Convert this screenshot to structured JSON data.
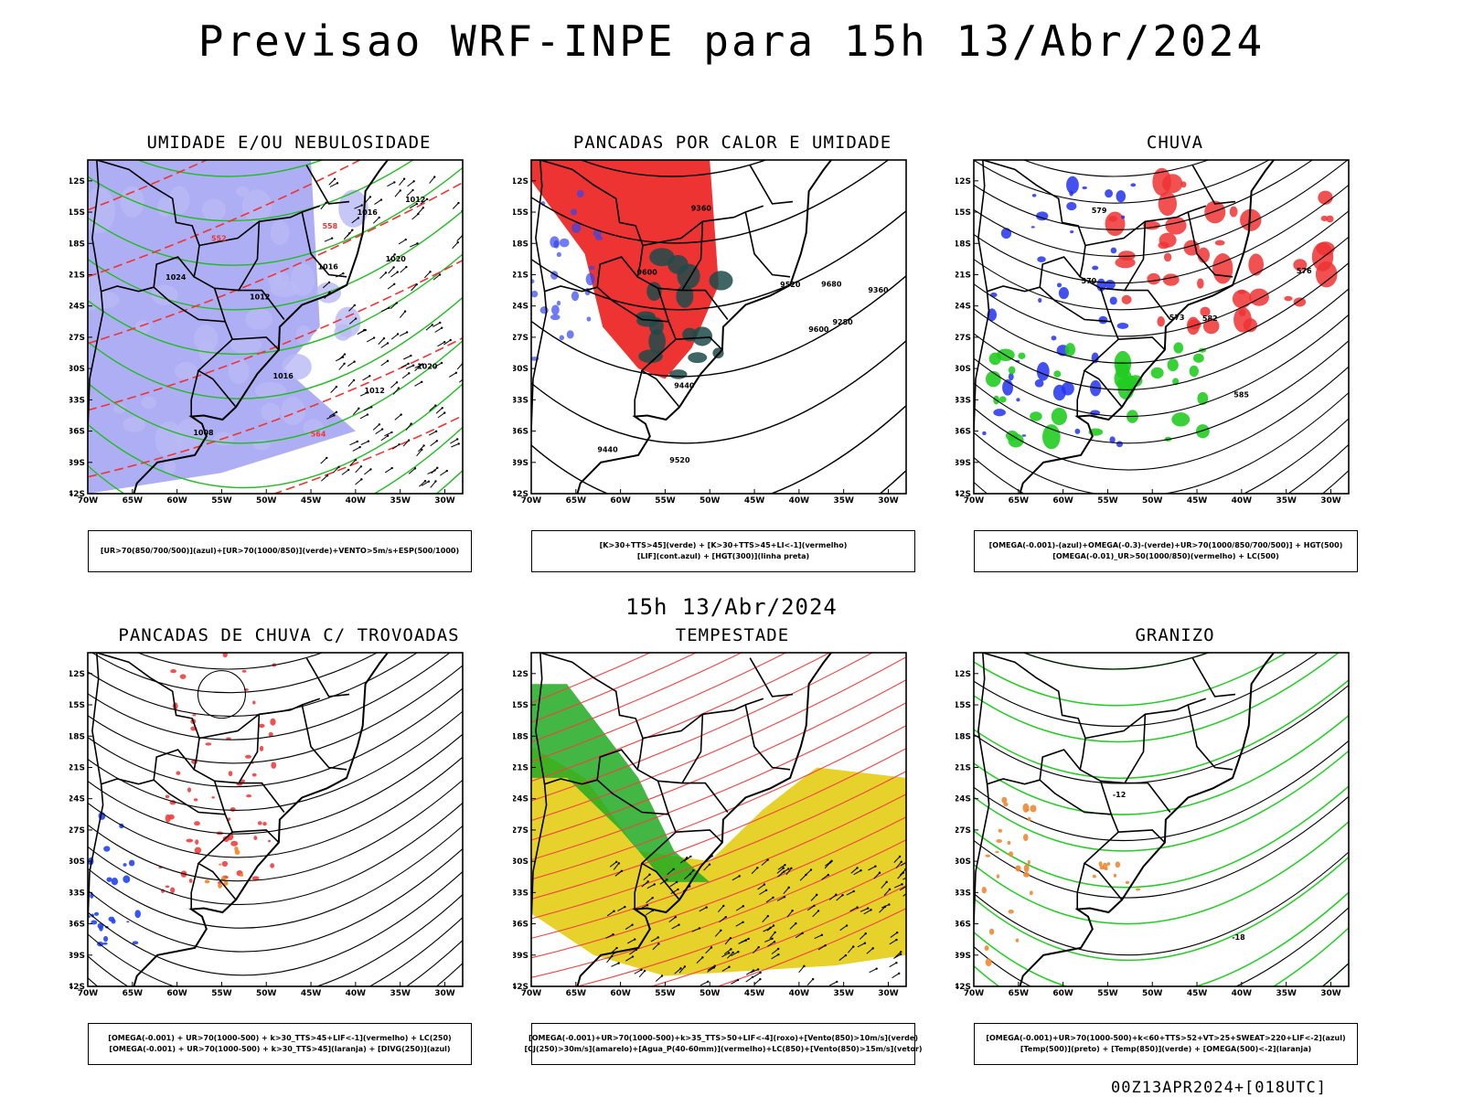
{
  "header": {
    "title": "Previsao WRF-INPE  para 15h 13/Abr/2024",
    "mid_title": "15h 13/Abr/2024",
    "footer": "00Z13APR2024+[018UTC]"
  },
  "axes": {
    "lat_labels": [
      "12S",
      "15S",
      "18S",
      "21S",
      "24S",
      "27S",
      "30S",
      "33S",
      "36S",
      "39S",
      "42S"
    ],
    "lon_labels": [
      "70W",
      "65W",
      "60W",
      "55W",
      "50W",
      "45W",
      "40W",
      "35W",
      "30W"
    ]
  },
  "panels": [
    {
      "id": "umidade",
      "title": "UMIDADE E/OU NEBULOSIDADE",
      "legend": [
        "[UR>70(850/700/500)](azul)+[UR>70(1000/850)](verde)+VENTO>5m/s+ESP(500/1000)"
      ],
      "colors": {
        "fill": "#8c8cf0",
        "contour": "#22bb22",
        "dashed": "#ee3333"
      },
      "labels": [
        "1016",
        "1012",
        "1008",
        "1012",
        "1016",
        "1020",
        "1024",
        "1012",
        "1016",
        "1020",
        "564",
        "558",
        "552"
      ]
    },
    {
      "id": "calor",
      "title": "PANCADAS POR CALOR E UMIDADE",
      "legend": [
        "[K>30+TTS>45](verde) + [K>30+TTS>45+LI<-1](vermelho)",
        "[LIF](cont.azul) + [HGT(300)](linha preta)"
      ],
      "colors": {
        "fill": "#ee3333",
        "secondary": "#1e4a4a",
        "contour": "#3344ee"
      },
      "labels": [
        "9680",
        "9600",
        "9520",
        "9440",
        "9360",
        "9280",
        "9600",
        "9520",
        "9440",
        "9360"
      ]
    },
    {
      "id": "chuva",
      "title": "CHUVA",
      "legend": [
        "[OMEGA(-0.001)-(azul)+OMEGA(-0.3)-(verde)+UR>70(1000/850/700/500)] + HGT(500)",
        "[OMEGA(-0.01)_UR>50(1000/850)(vermelho) + LC(500)"
      ],
      "colors": {
        "fill": "#ee3333",
        "secondary": "#2233ee",
        "tertiary": "#22cc22"
      },
      "labels": [
        "585",
        "582",
        "579",
        "576",
        "573",
        "570"
      ]
    },
    {
      "id": "trovoadas",
      "title": "PANCADAS DE CHUVA C/ TROVOADAS",
      "legend": [
        "[OMEGA(-0.001) + UR>70(1000-500) + k>30_TTS>45+LIF<-1](vermelho) + LC(250)",
        "[OMEGA(-0.001) + UR>70(1000-500) + k>30_TTS>45](laranja) + [DIVG(250)](azul)"
      ],
      "colors": {
        "fill": "#ee3333",
        "secondary": "#2244ee",
        "tertiary": "#ee8822"
      },
      "labels": []
    },
    {
      "id": "tempestade",
      "title": "TEMPESTADE",
      "legend": [
        "[OMEGA(-0.001)+UR>70(1000-500)+k>35_TTS>50+LIF<-4](roxo)+[Vento(850)>10m/s](verde)",
        "[CJ(250)>30m/s](amarelo)+[Agua_P(40-60mm)](vermelho)+LC(850)+[Vento(850)>15m/s](vetor)"
      ],
      "colors": {
        "fill": "#e6d22a",
        "secondary": "#22aa22",
        "contour": "#ee4444"
      },
      "labels": []
    },
    {
      "id": "granizo",
      "title": "GRANIZO",
      "legend": [
        "[OMEGA(-0.001)+UR>70(1000-500)+k<60+TTS>52+VT>25+SWEAT>220+LIF<-2](azul)",
        "[Temp(500)](preto) + [Temp(850)](verde) + [OMEGA(500)<-2](laranja)"
      ],
      "colors": {
        "fill": "#ee8833",
        "contour": "#22cc22"
      },
      "labels": [
        "-12",
        "-18"
      ]
    }
  ]
}
